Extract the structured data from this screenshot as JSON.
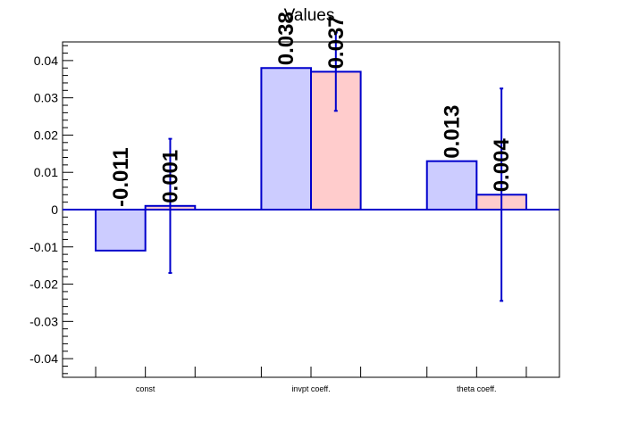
{
  "chart_data": {
    "type": "bar",
    "title": "Values",
    "xlabel": "",
    "ylabel": "",
    "categories": [
      "const",
      "invpt coeff.",
      "theta coeff."
    ],
    "ylim": [
      -0.045,
      0.045
    ],
    "yticks": [
      -0.04,
      -0.03,
      -0.02,
      -0.01,
      0,
      0.01,
      0.02,
      0.03,
      0.04
    ],
    "ytick_labels": [
      "-0.04",
      "-0.03",
      "-0.02",
      "-0.01",
      "0",
      "0.01",
      "0.02",
      "0.03",
      "0.04"
    ],
    "grid": false,
    "series": [
      {
        "values": [
          -0.011,
          0.038,
          0.013
        ],
        "labels": [
          "-0.011",
          "0.038",
          "0.013"
        ],
        "fill": "#ccccff",
        "stroke": "#0000cc"
      },
      {
        "values": [
          0.001,
          0.037,
          0.004
        ],
        "labels": [
          "0.001",
          "0.037",
          "0.004"
        ],
        "errors": [
          0.018,
          0.0105,
          0.0285
        ],
        "fill": "#ffcccc",
        "stroke": "#0000cc"
      }
    ],
    "zero_line_color": "#0000cc",
    "error_bar_color": "#0000cc"
  }
}
